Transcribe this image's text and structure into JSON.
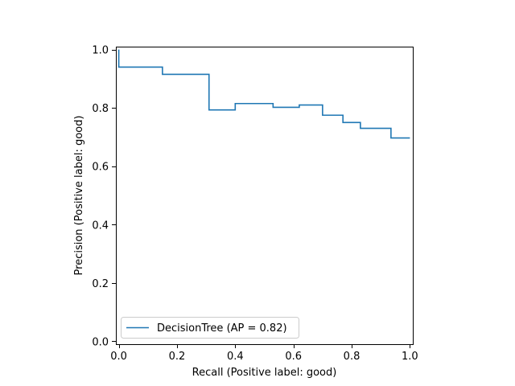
{
  "chart_data": {
    "type": "line",
    "drawstyle": "steps-post",
    "xlabel": "Recall (Positive label: good)",
    "ylabel": "Precision (Positive label: good)",
    "xlim": [
      -0.01,
      1.01
    ],
    "ylim": [
      -0.01,
      1.01
    ],
    "xticks": [
      0.0,
      0.2,
      0.4,
      0.6,
      0.8,
      1.0
    ],
    "xtick_labels": [
      "0.0",
      "0.2",
      "0.4",
      "0.6",
      "0.8",
      "1.0"
    ],
    "yticks": [
      0.0,
      0.2,
      0.4,
      0.6,
      0.8,
      1.0
    ],
    "ytick_labels": [
      "0.0",
      "0.2",
      "0.4",
      "0.6",
      "0.8",
      "1.0"
    ],
    "grid": false,
    "legend_position": "lower-left",
    "series": [
      {
        "name": "DecisionTree (AP = 0.82)",
        "color": "#1f77b4",
        "x": [
          0.0,
          0.0,
          0.15,
          0.31,
          0.4,
          0.53,
          0.62,
          0.7,
          0.77,
          0.83,
          0.935,
          1.0
        ],
        "y": [
          1.0,
          0.94,
          0.915,
          0.793,
          0.815,
          0.802,
          0.81,
          0.775,
          0.75,
          0.73,
          0.697,
          0.697
        ]
      }
    ]
  }
}
